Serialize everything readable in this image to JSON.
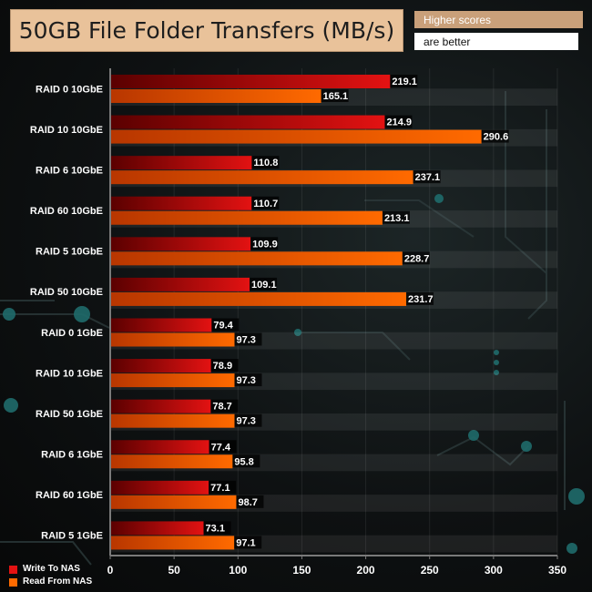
{
  "title": "50GB File Folder Transfers (MB/s)",
  "note_line1": "Higher scores",
  "note_line2": "are better",
  "colors": {
    "write": "#e31212",
    "read": "#ff6a00",
    "write_dark": "#5a0000",
    "read_dark": "#b83600"
  },
  "chart_data": {
    "type": "bar",
    "orientation": "horizontal",
    "title": "50GB File Folder Transfers (MB/s)",
    "categories": [
      "RAID 0 10GbE",
      "RAID 10 10GbE",
      "RAID 6 10GbE",
      "RAID 60 10GbE",
      "RAID 5 10GbE",
      "RAID 50 10GbE",
      "RAID 0 1GbE",
      "RAID 10 1GbE",
      "RAID 50 1GbE",
      "RAID 6 1GbE",
      "RAID 60 1GbE",
      "RAID 5 1GbE"
    ],
    "series": [
      {
        "name": "Write To NAS",
        "values": [
          219.1,
          214.9,
          110.8,
          110.7,
          109.9,
          109.1,
          79.4,
          78.9,
          78.7,
          77.4,
          77.1,
          73.1
        ]
      },
      {
        "name": "Read From NAS",
        "values": [
          165.1,
          290.6,
          237.1,
          213.1,
          228.7,
          231.7,
          97.3,
          97.3,
          97.3,
          95.8,
          98.7,
          97.1
        ]
      }
    ],
    "xlim": [
      0,
      350
    ],
    "ticks": [
      0,
      50,
      100,
      150,
      200,
      250,
      300,
      350
    ],
    "legend": "bottom-left"
  }
}
